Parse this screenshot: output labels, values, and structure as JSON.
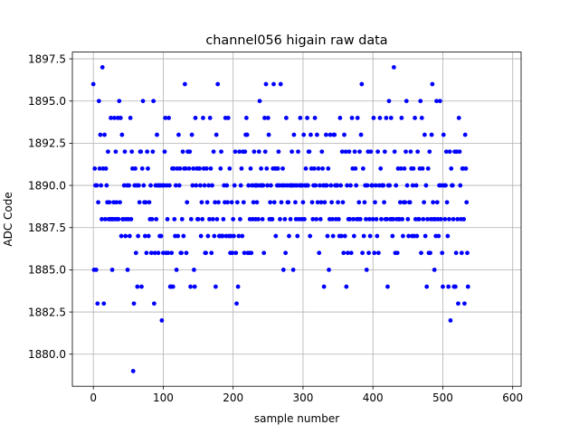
{
  "chart_data": {
    "type": "scatter",
    "title": "channel056 higain raw data",
    "xlabel": "sample number",
    "ylabel": "ADC Code",
    "xlim": [
      -30,
      612
    ],
    "ylim": [
      1878.1,
      1897.9
    ],
    "xticks": [
      0,
      100,
      200,
      300,
      400,
      500,
      600
    ],
    "xtick_labels": [
      "0",
      "100",
      "200",
      "300",
      "400",
      "500",
      "600"
    ],
    "yticks": [
      1880.0,
      1882.5,
      1885.0,
      1887.5,
      1890.0,
      1892.5,
      1895.0,
      1897.5
    ],
    "ytick_labels": [
      "1880.0",
      "1882.5",
      "1885.0",
      "1887.5",
      "1890.0",
      "1892.5",
      "1895.0",
      "1897.5"
    ],
    "grid": true,
    "marker_color": "#0000ff",
    "series": [
      {
        "values": [
          1896,
          1885,
          1891,
          1890,
          1885,
          1890,
          1883,
          1889,
          1895,
          1891,
          1893,
          1890,
          1888,
          1897,
          1891,
          1883,
          1893,
          1888,
          1891,
          1890,
          1889,
          1892,
          1888,
          1889,
          1888,
          1894,
          1888,
          1885,
          1888,
          1889,
          1894,
          1888,
          1892,
          1889,
          1888,
          1894,
          1888,
          1895,
          1889,
          1894,
          1887,
          1893,
          1888,
          1888,
          1890,
          1892,
          1887,
          1888,
          1890,
          1885,
          1888,
          1890,
          1887,
          1894,
          1888,
          1892,
          1891,
          1879,
          1883,
          1890,
          1891,
          1886,
          1890,
          1884,
          1887,
          1890,
          1889,
          1892,
          1892,
          1884,
          1891,
          1895,
          1890,
          1889,
          1887,
          1889,
          1886,
          1892,
          1891,
          1887,
          1889,
          1888,
          1890,
          1886,
          1888,
          1892,
          1895,
          1883,
          1886,
          1890,
          1888,
          1893,
          1890,
          1886,
          1890,
          1887,
          1890,
          1887,
          1882,
          1890,
          1886,
          1890,
          1892,
          1894,
          1886,
          1890,
          1888,
          1886,
          1894,
          1890,
          1884,
          1884,
          1886,
          1891,
          1884,
          1891,
          1888,
          1887,
          1890,
          1885,
          1891,
          1887,
          1893,
          1890,
          1891,
          1886,
          1886,
          1888,
          1892,
          1887,
          1891,
          1896,
          1891,
          1886,
          1889,
          1892,
          1892,
          1891,
          1892,
          1884,
          1888,
          1893,
          1890,
          1891,
          1885,
          1884,
          1894,
          1890,
          1891,
          1888,
          1888,
          1891,
          1891,
          1890,
          1887,
          1889,
          1888,
          1894,
          1891,
          1890,
          1886,
          1886,
          1891,
          1889,
          1887,
          1890,
          1888,
          1894,
          1891,
          1886,
          1890,
          1888,
          1892,
          1887,
          1889,
          1884,
          1893,
          1888,
          1896,
          1889,
          1887,
          1887,
          1891,
          1892,
          1887,
          1887,
          1888,
          1890,
          1889,
          1894,
          1887,
          1890,
          1889,
          1894,
          1887,
          1891,
          1886,
          1887,
          1889,
          1886,
          1888,
          1887,
          1890,
          1892,
          1886,
          1883,
          1889,
          1884,
          1887,
          1892,
          1888,
          1890,
          1891,
          1887,
          1892,
          1889,
          1886,
          1892,
          1893,
          1894,
          1893,
          1886,
          1890,
          1886,
          1888,
          1891,
          1886,
          1890,
          1888,
          1889,
          1892,
          1890,
          1888,
          1890,
          1889,
          1890,
          1888,
          1892,
          1895,
          1890,
          1891,
          1890,
          1888,
          1890,
          1886,
          1894,
          1892,
          1896,
          1891,
          1890,
          1894,
          1893,
          1888,
          1889,
          1890,
          1888,
          1888,
          1891,
          1896,
          1889,
          1891,
          1887,
          1891,
          1890,
          1891,
          1892,
          1890,
          1888,
          1896,
          1889,
          1890,
          1891,
          1885,
          1890,
          1888,
          1886,
          1894,
          1890,
          1889,
          1889,
          1887,
          1890,
          1888,
          1890,
          1892,
          1890,
          1885,
          1893,
          1890,
          1889,
          1888,
          1890,
          1887,
          1892,
          1888,
          1890,
          1894,
          1890,
          1888,
          1890,
          1889,
          1893,
          1888,
          1890,
          1891,
          1890,
          1894,
          1890,
          1892,
          1892,
          1887,
          1893,
          1891,
          1889,
          1888,
          1890,
          1891,
          1894,
          1890,
          1888,
          1893,
          1889,
          1891,
          1886,
          1890,
          1888,
          1889,
          1892,
          1891,
          1890,
          1884,
          1889,
          1890,
          1893,
          1890,
          1887,
          1891,
          1885,
          1888,
          1893,
          1890,
          1889,
          1888,
          1887,
          1893,
          1893,
          1890,
          1888,
          1890,
          1890,
          1889,
          1888,
          1887,
          1894,
          1890,
          1887,
          1892,
          1889,
          1886,
          1893,
          1887,
          1892,
          1884,
          1890,
          1886,
          1888,
          1892,
          1888,
          1890,
          1886,
          1894,
          1891,
          1888,
          1887,
          1892,
          1891,
          1890,
          1888,
          1894,
          1888,
          1889,
          1892,
          1888,
          1893,
          1896,
          1886,
          1891,
          1887,
          1889,
          1890,
          1888,
          1885,
          1890,
          1892,
          1886,
          1888,
          1887,
          1892,
          1890,
          1890,
          1888,
          1894,
          1886,
          1889,
          1890,
          1888,
          1887,
          1892,
          1886,
          1890,
          1894,
          1891,
          1888,
          1890,
          1890,
          1890,
          1889,
          1892,
          1888,
          1894,
          1888,
          1884,
          1890,
          1895,
          1890,
          1888,
          1894,
          1888,
          1887,
          1888,
          1897,
          1892,
          1886,
          1890,
          1888,
          1886,
          1891,
          1888,
          1888,
          1889,
          1891,
          1894,
          1888,
          1887,
          1889,
          1891,
          1889,
          1892,
          1895,
          1890,
          1888,
          1887,
          1889,
          1889,
          1892,
          1891,
          1887,
          1890,
          1891,
          1887,
          1894,
          1888,
          1890,
          1887,
          1892,
          1888,
          1888,
          1891,
          1895,
          1886,
          1894,
          1891,
          1888,
          1889,
          1893,
          1887,
          1890,
          1884,
          1888,
          1891,
          1886,
          1892,
          1886,
          1888,
          1893,
          1896,
          1889,
          1888,
          1885,
          1888,
          1887,
          1895,
          1889,
          1888,
          1887,
          1890,
          1895,
          1888,
          1890,
          1886,
          1884,
          1893,
          1890,
          1888,
          1890,
          1892,
          1889,
          1887,
          1884,
          1888,
          1892,
          1882,
          1891,
          1890,
          1890,
          1888,
          1884,
          1892,
          1884,
          1886,
          1892,
          1888,
          1883,
          1894,
          1892,
          1890,
          1888,
          1886,
          1891,
          1891,
          1888,
          1883,
          1893,
          1891,
          1889,
          1886,
          1884
        ],
        "color": "#0000ff"
      }
    ]
  }
}
